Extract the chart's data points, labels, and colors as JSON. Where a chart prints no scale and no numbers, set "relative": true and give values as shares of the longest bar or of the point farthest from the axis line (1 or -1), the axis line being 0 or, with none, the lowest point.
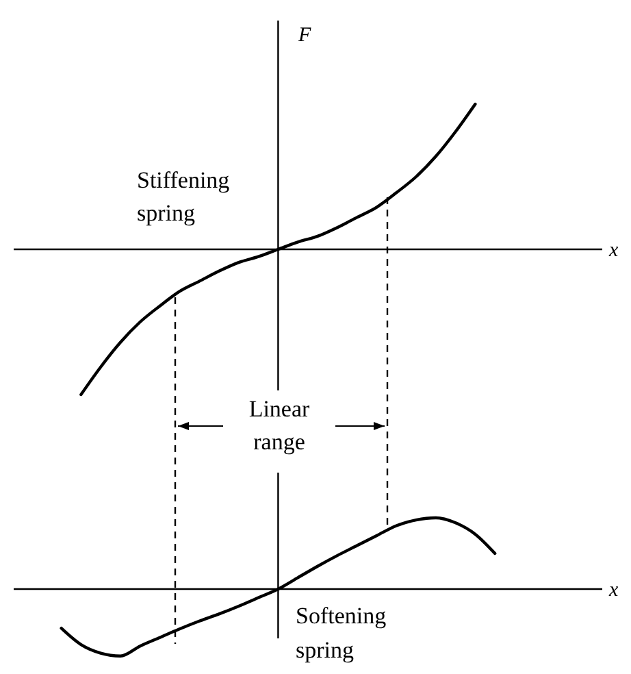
{
  "chart_data": [
    {
      "type": "line",
      "relative": true,
      "xlabel": "x",
      "ylabel": "F",
      "annotations": [
        "Stiffening spring",
        "Linear range"
      ],
      "categories": [
        null,
        null,
        null,
        null,
        null,
        null,
        null,
        null,
        null,
        null,
        null,
        null,
        null,
        null,
        null,
        null,
        null,
        null,
        null,
        null,
        null,
        null,
        null,
        null,
        null,
        null,
        null,
        null,
        null,
        null
      ],
      "series": [
        {
          "color": "#000000",
          "values": [
            null,
            null,
            null,
            -1,
            -0.81,
            -0.64,
            -0.5,
            -0.39,
            -0.29,
            -0.22,
            -0.15,
            -0.09,
            -0.05,
            0,
            0.05,
            0.09,
            0.15,
            0.22,
            0.29,
            0.39,
            0.5,
            0.64,
            0.81,
            1,
            null,
            null,
            null,
            null,
            null,
            null
          ]
        }
      ]
    },
    {
      "type": "line",
      "relative": true,
      "xlabel": "x",
      "annotations": [
        "Softening spring"
      ],
      "categories": [
        null,
        null,
        null,
        null,
        null,
        null,
        null,
        null,
        null,
        null,
        null,
        null,
        null,
        null,
        null,
        null,
        null,
        null,
        null,
        null,
        null,
        null,
        null,
        null,
        null,
        null,
        null,
        null,
        null,
        null
      ],
      "series": [
        {
          "color": "#000000",
          "values": [
            null,
            null,
            -0.55,
            -0.78,
            -0.9,
            -0.94,
            -0.8,
            -0.68,
            -0.56,
            -0.45,
            -0.35,
            -0.24,
            -0.12,
            0,
            0.16,
            0.32,
            0.47,
            0.61,
            0.75,
            0.89,
            0.97,
            1,
            0.93,
            0.77,
            0.5,
            null,
            null,
            null,
            null,
            null
          ]
        }
      ]
    }
  ]
}
